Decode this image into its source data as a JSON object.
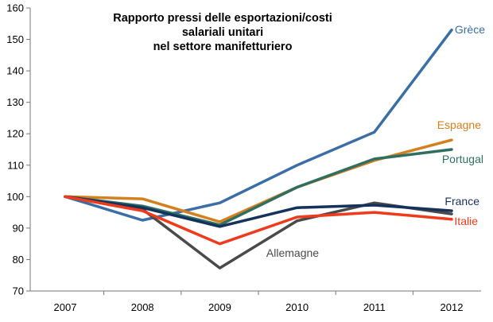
{
  "chart_data": {
    "type": "line",
    "title_lines": [
      "Rapporto pressi delle esportazioni/costi salariali unitari",
      "nel settore manifetturiero"
    ],
    "xlabel": "",
    "ylabel": "",
    "categories": [
      "2007",
      "2008",
      "2009",
      "2010",
      "2011",
      "2012"
    ],
    "ylim": [
      70,
      160
    ],
    "yticks": [
      70,
      80,
      90,
      100,
      110,
      120,
      130,
      140,
      150,
      160
    ],
    "grid": false,
    "legend": "inline-labels",
    "series": [
      {
        "name": "Grèce",
        "color": "#3b6ea5",
        "values": [
          100,
          92.5,
          98,
          110,
          120.5,
          153
        ]
      },
      {
        "name": "Espagne",
        "color": "#d5801f",
        "values": [
          100,
          99.3,
          92,
          103,
          111.5,
          118
        ]
      },
      {
        "name": "Portugal",
        "color": "#2f6f62",
        "values": [
          100,
          97,
          91,
          103,
          112,
          115
        ]
      },
      {
        "name": "France",
        "color": "#16325c",
        "values": [
          100,
          96.5,
          90.5,
          96.5,
          97.3,
          95.5
        ]
      },
      {
        "name": "Italie",
        "color": "#f03a1c",
        "values": [
          100,
          95.5,
          85,
          93.5,
          95,
          92.8
        ]
      },
      {
        "name": "Allemagne",
        "color": "#4a4a4a",
        "values": [
          100,
          96,
          77.3,
          92.3,
          98,
          94.5
        ]
      }
    ]
  }
}
